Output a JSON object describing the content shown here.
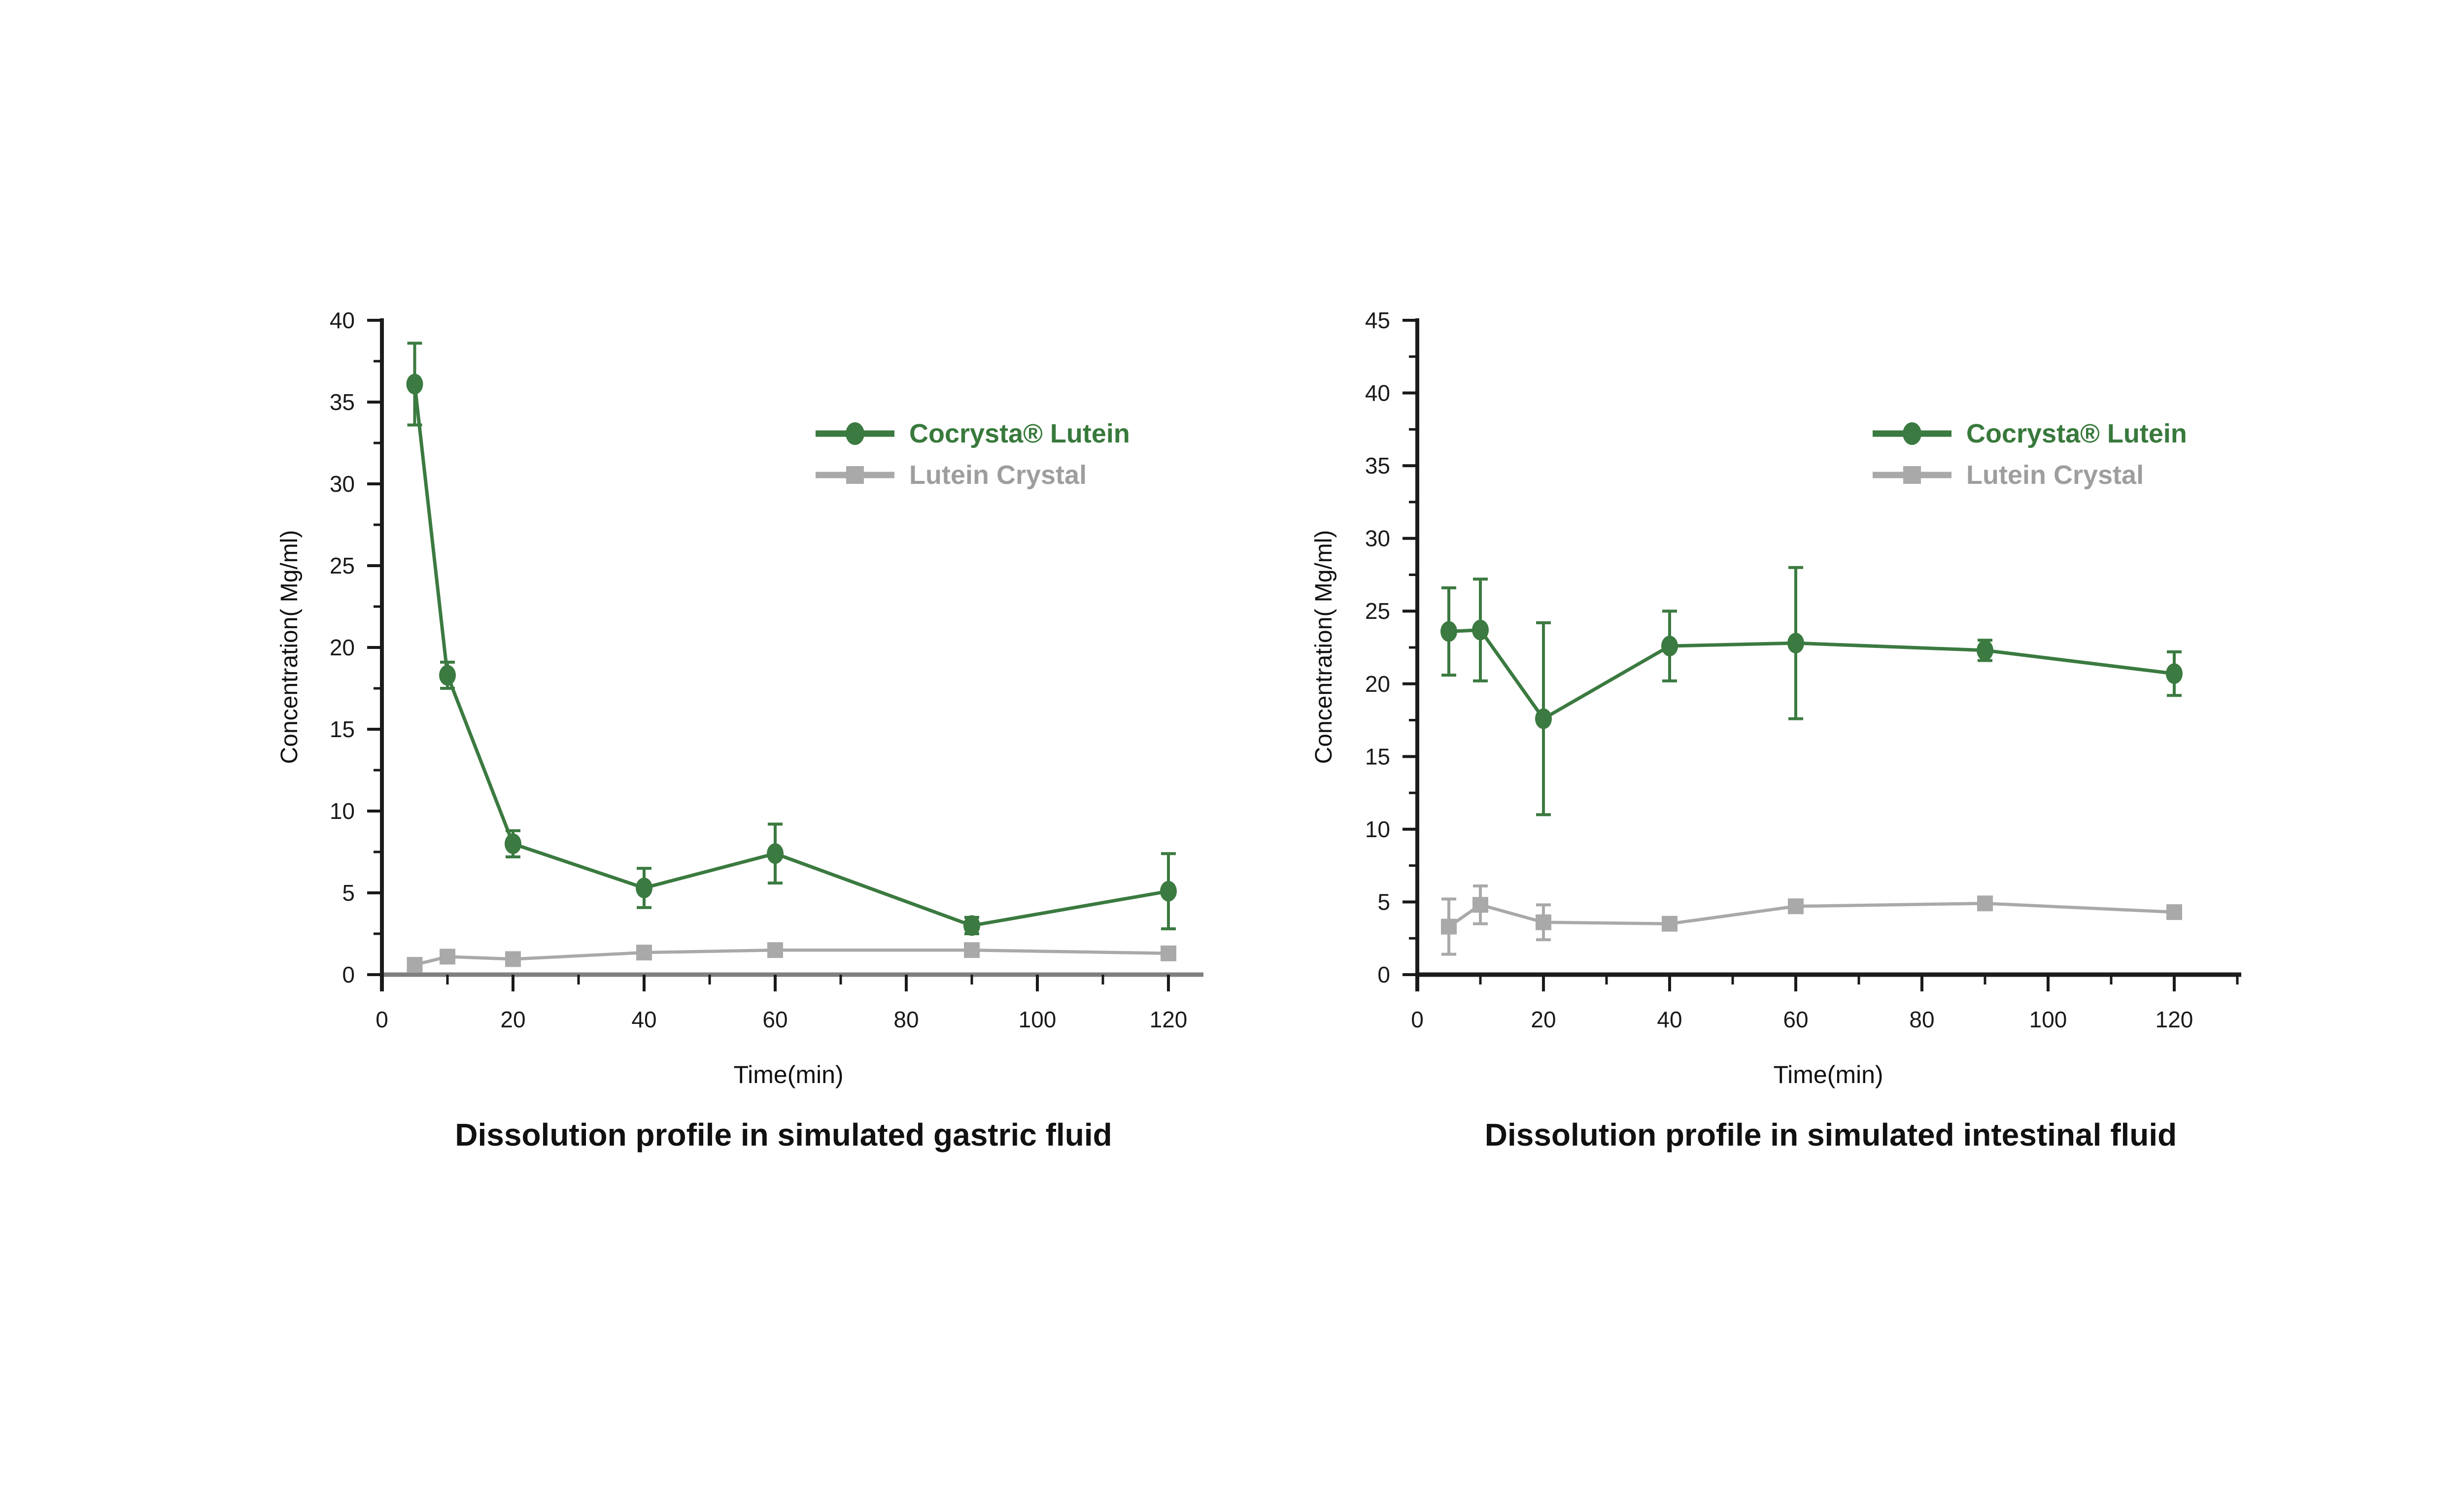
{
  "figure": {
    "background": "#ffffff"
  },
  "colors": {
    "cocrysta_green": "#3b7a40",
    "cocrysta_text_green": "#38793c",
    "crystal_gray": "#a9a9a9",
    "crystal_text_gray": "#9e9e9e",
    "gastric_x_axis": "#7f7f7f",
    "intestinal_x_axis": "#1c1c1c",
    "y_axis": "#1c1c1c",
    "tick": "#1a1a1a",
    "text": "#111111"
  },
  "chart_data": [
    {
      "type": "line",
      "title": "Dissolution profile in simulated gastric fluid",
      "xlabel": "Time(min)",
      "ylabel": "Concentration( Mg/ml)",
      "x": [
        5,
        10,
        20,
        40,
        60,
        90,
        120
      ],
      "xlim": [
        0,
        125
      ],
      "ylim": [
        0,
        40
      ],
      "xticks": [
        0,
        20,
        40,
        60,
        80,
        100,
        120
      ],
      "xtick_minor": [
        10,
        30,
        50,
        70,
        90,
        110
      ],
      "yticks": [
        0,
        5,
        10,
        15,
        20,
        25,
        30,
        35,
        40
      ],
      "ytick_minor_step": 2.5,
      "grid": false,
      "legend_position": "upper right inside",
      "series": [
        {
          "name": "Cocrysta® Lutein",
          "marker": "circle",
          "color": "#3b7a40",
          "values": [
            36.1,
            18.3,
            8.0,
            5.3,
            7.4,
            3.0,
            5.1
          ],
          "errors": [
            2.5,
            0.8,
            0.8,
            1.2,
            1.8,
            0.5,
            2.3
          ]
        },
        {
          "name": "Lutein Crystal",
          "marker": "square",
          "color": "#a9a9a9",
          "values": [
            0.6,
            1.1,
            0.95,
            1.35,
            1.5,
            1.5,
            1.3
          ],
          "errors": [
            0.15,
            0.2,
            0.2,
            0.3,
            0.3,
            0.35,
            0.3
          ]
        }
      ]
    },
    {
      "type": "line",
      "title": "Dissolution profile in simulated intestinal fluid",
      "xlabel": "Time(min)",
      "ylabel": "Concentration( Mg/ml)",
      "x": [
        5,
        10,
        20,
        40,
        60,
        90,
        120
      ],
      "xlim": [
        0,
        131
      ],
      "ylim": [
        0,
        45
      ],
      "xticks": [
        0,
        20,
        40,
        60,
        80,
        100,
        120
      ],
      "xtick_minor": [
        10,
        30,
        50,
        70,
        90,
        110,
        130
      ],
      "yticks": [
        0,
        5,
        10,
        15,
        20,
        25,
        30,
        35,
        40,
        45
      ],
      "ytick_minor_step": 2.5,
      "grid": false,
      "legend_position": "upper right inside",
      "series": [
        {
          "name": "Cocrysta® Lutein",
          "marker": "circle",
          "color": "#3b7a40",
          "values": [
            23.6,
            23.7,
            17.6,
            22.6,
            22.8,
            22.3,
            20.7
          ],
          "errors": [
            3.0,
            3.5,
            6.6,
            2.4,
            5.2,
            0.7,
            1.5
          ]
        },
        {
          "name": "Lutein Crystal",
          "marker": "square",
          "color": "#a9a9a9",
          "values": [
            3.3,
            4.8,
            3.6,
            3.5,
            4.7,
            4.9,
            4.3
          ],
          "errors": [
            1.9,
            1.3,
            1.2,
            0,
            0,
            0,
            0
          ]
        }
      ]
    }
  ]
}
